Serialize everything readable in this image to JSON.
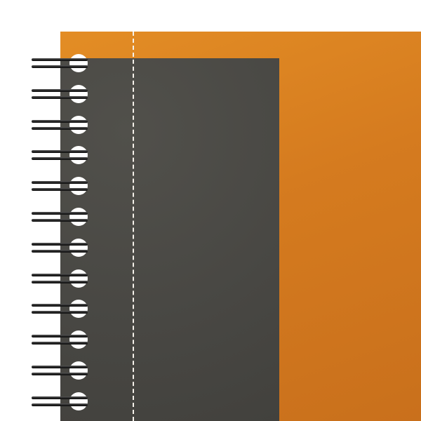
{
  "notebook": {
    "cover_color": "#d57b1f",
    "panel_color": "#484743",
    "binding": "spiral-wire",
    "perforation_color": "#f5f1ea"
  }
}
